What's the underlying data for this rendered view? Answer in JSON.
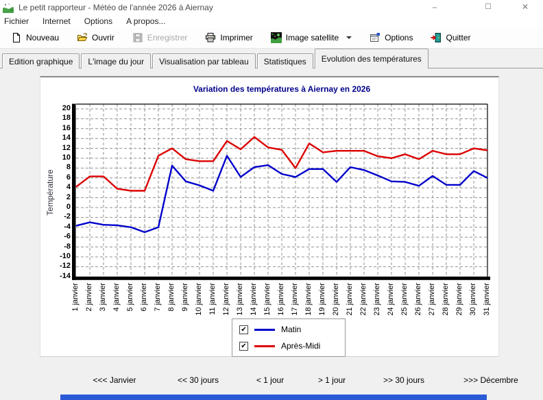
{
  "window": {
    "title": "Le petit rapporteur - Météo de l'année 2026 à Aiernay",
    "minimize_glyph": "–",
    "maximize_glyph": "☐",
    "close_glyph": "✕"
  },
  "menu": {
    "items": [
      "Fichier",
      "Internet",
      "Options",
      "A propos..."
    ]
  },
  "toolbar": {
    "buttons": [
      {
        "label": "Nouveau",
        "icon": "new-document-icon",
        "enabled": true,
        "has_dropdown": false
      },
      {
        "label": "Ouvrir",
        "icon": "open-folder-icon",
        "enabled": true,
        "has_dropdown": false
      },
      {
        "label": "Enregistrer",
        "icon": "save-icon",
        "enabled": false,
        "has_dropdown": false
      },
      {
        "label": "Imprimer",
        "icon": "printer-icon",
        "enabled": true,
        "has_dropdown": false
      },
      {
        "label": "Image satellite",
        "icon": "satellite-image-icon",
        "enabled": true,
        "has_dropdown": true
      },
      {
        "label": "Options",
        "icon": "options-icon",
        "enabled": true,
        "has_dropdown": false
      },
      {
        "label": "Quitter",
        "icon": "quit-icon",
        "enabled": true,
        "has_dropdown": false
      }
    ]
  },
  "tabs": {
    "items": [
      {
        "label": "Edition graphique",
        "active": false
      },
      {
        "label": "L'image du jour",
        "active": false
      },
      {
        "label": "Visualisation par tableau",
        "active": false
      },
      {
        "label": "Statistiques",
        "active": false
      },
      {
        "label": "Evolution des températures",
        "active": true
      }
    ]
  },
  "chart_data": {
    "type": "line",
    "title": "Variation des températures à Aiernay en 2026",
    "xlabel": "",
    "ylabel": "Température",
    "ylim": [
      -14,
      20
    ],
    "ytick_step": 2,
    "grid": "dashed",
    "legend_position": "bottom",
    "title_color": "#00008b",
    "x": [
      "1 janvier",
      "2 janvier",
      "3 janvier",
      "4 janvier",
      "5 janvier",
      "6 janvier",
      "7 janvier",
      "8 janvier",
      "9 janvier",
      "10 janvier",
      "11 janvier",
      "12 janvier",
      "13 janvier",
      "14 janvier",
      "15 janvier",
      "16 janvier",
      "17 janvier",
      "18 janvier",
      "19 janvier",
      "20 janvier",
      "21 janvier",
      "22 janvier",
      "23 janvier",
      "24 janvier",
      "25 janvier",
      "26 janvier",
      "27 janvier",
      "28 janvier",
      "29 janvier",
      "30 janvier",
      "31 janvier"
    ],
    "series": [
      {
        "name": "Matin",
        "color": "#0000cc",
        "checked": true,
        "values": [
          -3.7,
          -3.0,
          -3.5,
          -3.6,
          -4.0,
          -5.0,
          -4.0,
          8.5,
          5.3,
          4.5,
          3.4,
          10.5,
          6.2,
          8.2,
          8.6,
          6.8,
          6.2,
          7.8,
          7.8,
          5.2,
          8.2,
          7.6,
          6.5,
          5.3,
          5.2,
          4.4,
          6.4,
          4.6,
          4.6,
          7.4,
          6.0
        ]
      },
      {
        "name": "Après-Midi",
        "color": "#dd0000",
        "checked": true,
        "values": [
          4.2,
          6.3,
          6.3,
          3.8,
          3.4,
          3.4,
          10.5,
          12.0,
          9.8,
          9.4,
          9.4,
          13.5,
          11.8,
          14.3,
          12.2,
          11.7,
          8.0,
          13.0,
          11.2,
          11.5,
          11.5,
          11.5,
          10.4,
          10.0,
          10.8,
          9.8,
          11.5,
          10.8,
          10.8,
          12.0,
          11.6
        ]
      }
    ]
  },
  "glyphs": {
    "check": "✔"
  },
  "nav": {
    "buttons": [
      "<<< Janvier",
      "<< 30 jours",
      "< 1 jour",
      "> 1 jour",
      ">> 30 jours",
      ">>> Décembre"
    ]
  },
  "colors": {
    "taskbar_strip": "#2a5ad6",
    "grid": "#909090",
    "axis": "#000000"
  }
}
